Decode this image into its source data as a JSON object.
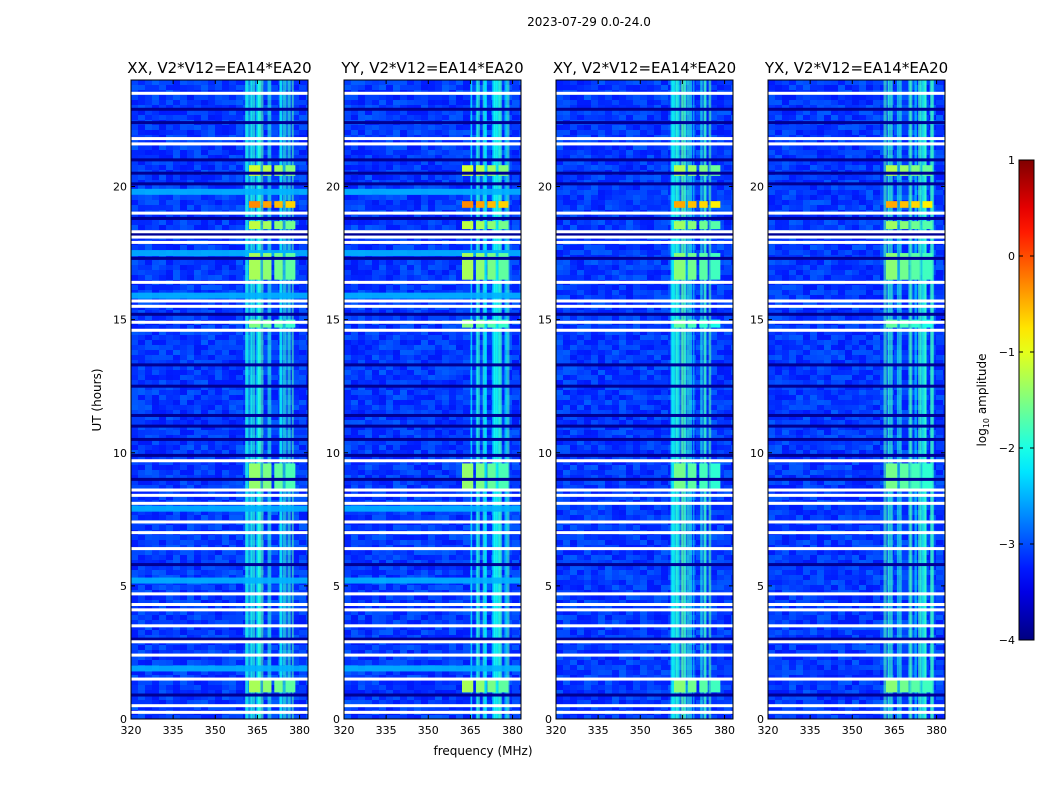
{
  "chart_data": {
    "type": "heatmap",
    "title": "2023-07-29 0.0-24.0",
    "xlabel": "frequency (MHz)",
    "ylabel": "UT (hours)",
    "xlim": [
      320,
      383
    ],
    "ylim": [
      0,
      24
    ],
    "x_ticks": [
      "320",
      "335",
      "350",
      "365",
      "380"
    ],
    "x_tick_values": [
      320,
      335,
      350,
      365,
      380
    ],
    "y_ticks": [
      "0",
      "5",
      "10",
      "15",
      "20"
    ],
    "y_tick_values": [
      0,
      5,
      10,
      15,
      20
    ],
    "colorbar": {
      "label": "log10 amplitude",
      "label_main": "log",
      "label_sub": "10",
      "label_rest": " amplitude",
      "range": [
        -4,
        1
      ],
      "ticks": [
        "−4",
        "−3",
        "−2",
        "−1",
        "0",
        "1"
      ],
      "tick_values": [
        -4,
        -3,
        -2,
        -1,
        0,
        1
      ],
      "colormap": "jet"
    },
    "background_level": -3.1,
    "rfi_band_mhz": [
      360,
      379
    ],
    "flagged_rows_hours": [
      0.25,
      0.5,
      1.5,
      2.4,
      2.9,
      3.5,
      4.1,
      4.3,
      4.7,
      6.4,
      7.0,
      7.4,
      8.1,
      8.4,
      8.6,
      9.7,
      14.6,
      14.9,
      15.5,
      15.7,
      16.4,
      17.9,
      18.1,
      18.3,
      19.0,
      21.6,
      21.8,
      23.5
    ],
    "dark_rows_hours": [
      0.9,
      3.0,
      5.8,
      9.0,
      9.9,
      10.5,
      11.0,
      11.4,
      12.5,
      13.3,
      15.2,
      17.3,
      18.2,
      18.8,
      20.1,
      20.5,
      21.0,
      22.4,
      22.9
    ],
    "bright_events": [
      {
        "t0": 1.0,
        "t1": 1.5,
        "level": -1.3
      },
      {
        "t0": 8.6,
        "t1": 9.6,
        "level": -1.4
      },
      {
        "t0": 14.7,
        "t1": 15.0,
        "level": -1.5
      },
      {
        "t0": 16.5,
        "t1": 17.5,
        "level": -1.3
      },
      {
        "t0": 18.4,
        "t1": 18.7,
        "level": -1.2
      },
      {
        "t0": 19.2,
        "t1": 19.45,
        "level": -0.3
      },
      {
        "t0": 20.4,
        "t1": 20.8,
        "level": -1.1
      }
    ],
    "series": [
      {
        "name": "XX, V2*V12=EA14*EA20",
        "broadband_rows_hours": [
          1.9,
          5.2,
          7.9,
          15.9,
          17.5,
          19.8
        ]
      },
      {
        "name": "YY, V2*V12=EA14*EA20",
        "broadband_rows_hours": [
          1.9,
          5.2,
          7.9,
          15.9,
          17.5,
          19.8
        ]
      },
      {
        "name": "XY, V2*V12=EA14*EA20",
        "broadband_rows_hours": []
      },
      {
        "name": "YX, V2*V12=EA14*EA20",
        "broadband_rows_hours": []
      }
    ]
  }
}
